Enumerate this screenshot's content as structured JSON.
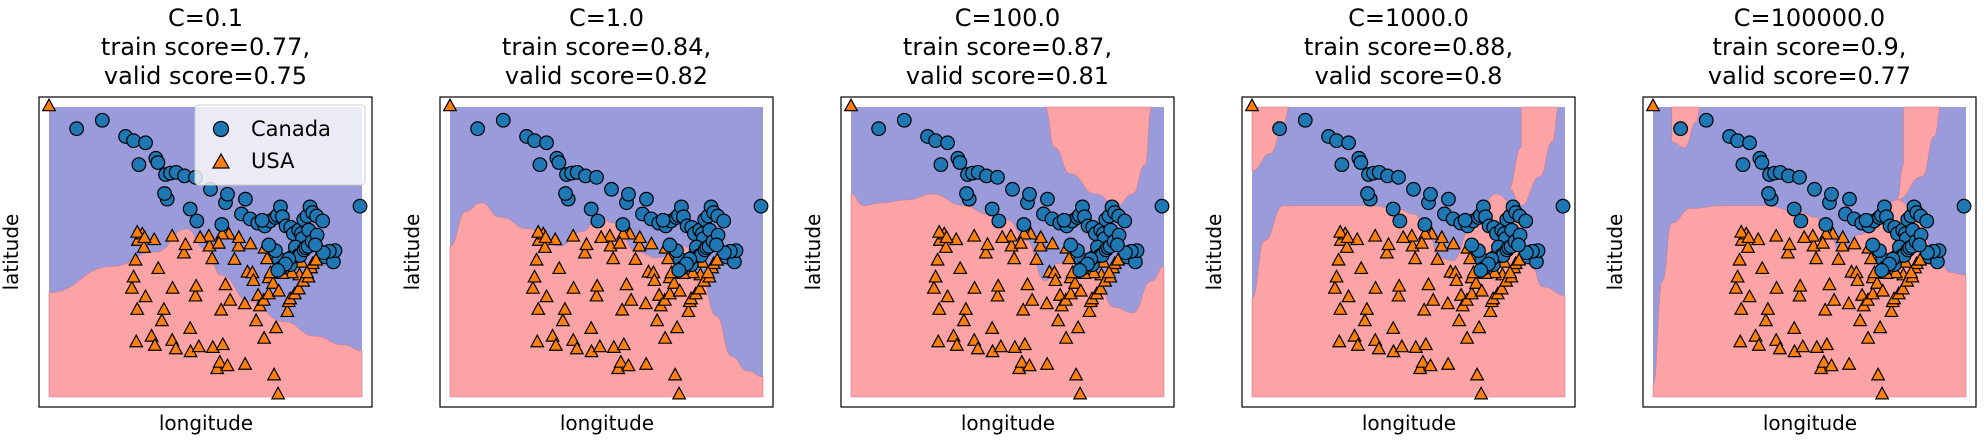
{
  "figure": {
    "title": ""
  },
  "chart_data": {
    "type": "scatter",
    "description_colors": {
      "canada_region": "#9a9bdb",
      "usa_region": "#fba3a5",
      "canada_marker": "#1f77b4",
      "usa_marker": "#ff7f0e"
    },
    "legend": {
      "location": "upper-right",
      "entries": [
        "Canada",
        "USA"
      ]
    },
    "panels": [
      {
        "title_lines": [
          "C=0.1",
          "train score=0.77,",
          "valid score=0.75"
        ],
        "xlabel": "longitude",
        "ylabel": "latitude",
        "boundary": [
          [
            0.0,
            0.64
          ],
          [
            0.2,
            0.55
          ],
          [
            0.34,
            0.5
          ],
          [
            0.44,
            0.42
          ],
          [
            0.5,
            0.49
          ],
          [
            0.55,
            0.58
          ],
          [
            0.64,
            0.67
          ],
          [
            0.75,
            0.74
          ],
          [
            0.85,
            0.79
          ],
          [
            0.94,
            0.82
          ],
          [
            1.0,
            0.84
          ]
        ]
      },
      {
        "title_lines": [
          "C=1.0",
          "train score=0.84,",
          "valid score=0.82"
        ],
        "xlabel": "longitude",
        "ylabel": "latitude",
        "boundary": [
          [
            0.0,
            0.48
          ],
          [
            0.05,
            0.36
          ],
          [
            0.1,
            0.33
          ],
          [
            0.16,
            0.38
          ],
          [
            0.25,
            0.42
          ],
          [
            0.35,
            0.48
          ],
          [
            0.42,
            0.43
          ],
          [
            0.48,
            0.38
          ],
          [
            0.52,
            0.4
          ],
          [
            0.6,
            0.5
          ],
          [
            0.66,
            0.52
          ],
          [
            0.75,
            0.48
          ],
          [
            0.8,
            0.58
          ],
          [
            0.85,
            0.72
          ],
          [
            0.9,
            0.86
          ],
          [
            0.95,
            0.91
          ],
          [
            1.0,
            0.93
          ]
        ]
      },
      {
        "title_lines": [
          "C=100.0",
          "train score=0.87,",
          "valid score=0.81"
        ],
        "xlabel": "longitude",
        "ylabel": "latitude",
        "boundary": [
          [
            0.0,
            0.3
          ],
          [
            0.04,
            0.34
          ],
          [
            0.1,
            0.33
          ],
          [
            0.18,
            0.32
          ],
          [
            0.26,
            0.3
          ],
          [
            0.36,
            0.34
          ],
          [
            0.44,
            0.37
          ],
          [
            0.5,
            0.39
          ],
          [
            0.56,
            0.46
          ],
          [
            0.62,
            0.6
          ],
          [
            0.66,
            0.54
          ],
          [
            0.72,
            0.5
          ],
          [
            0.78,
            0.58
          ],
          [
            0.84,
            0.69
          ],
          [
            0.9,
            0.71
          ],
          [
            0.96,
            0.6
          ],
          [
            1.0,
            0.55
          ]
        ],
        "extra_regions": [
          [
            [
              0.62,
              0.0
            ],
            [
              0.65,
              0.14
            ],
            [
              0.7,
              0.23
            ],
            [
              0.78,
              0.3
            ],
            [
              0.85,
              0.34
            ],
            [
              0.9,
              0.3
            ],
            [
              0.94,
              0.2
            ],
            [
              0.96,
              0.0
            ]
          ]
        ]
      },
      {
        "title_lines": [
          "C=1000.0",
          "train score=0.88,",
          "valid score=0.8"
        ],
        "xlabel": "longitude",
        "ylabel": "latitude",
        "boundary": [
          [
            0.0,
            0.66
          ],
          [
            0.04,
            0.46
          ],
          [
            0.1,
            0.34
          ],
          [
            0.18,
            0.34
          ],
          [
            0.28,
            0.34
          ],
          [
            0.38,
            0.34
          ],
          [
            0.46,
            0.35
          ],
          [
            0.52,
            0.37
          ],
          [
            0.56,
            0.43
          ],
          [
            0.6,
            0.52
          ],
          [
            0.64,
            0.53
          ],
          [
            0.7,
            0.42
          ],
          [
            0.78,
            0.3
          ],
          [
            0.84,
            0.34
          ],
          [
            0.88,
            0.5
          ],
          [
            0.93,
            0.62
          ],
          [
            1.0,
            0.65
          ]
        ],
        "extra_regions": [
          [
            [
              0.0,
              0.0
            ],
            [
              0.0,
              0.22
            ],
            [
              0.06,
              0.16
            ],
            [
              0.1,
              0.06
            ],
            [
              0.12,
              0.0
            ]
          ],
          [
            [
              0.86,
              0.0
            ],
            [
              0.86,
              0.14
            ],
            [
              0.82,
              0.28
            ],
            [
              0.86,
              0.34
            ],
            [
              0.92,
              0.24
            ],
            [
              0.96,
              0.12
            ],
            [
              0.98,
              0.0
            ]
          ]
        ]
      },
      {
        "title_lines": [
          "C=100000.0",
          "train score=0.9,",
          "valid score=0.77"
        ],
        "xlabel": "longitude",
        "ylabel": "latitude",
        "boundary": [
          [
            0.0,
            0.96
          ],
          [
            0.03,
            0.6
          ],
          [
            0.06,
            0.4
          ],
          [
            0.12,
            0.35
          ],
          [
            0.22,
            0.34
          ],
          [
            0.36,
            0.34
          ],
          [
            0.46,
            0.36
          ],
          [
            0.52,
            0.38
          ],
          [
            0.56,
            0.44
          ],
          [
            0.6,
            0.5
          ],
          [
            0.66,
            0.44
          ],
          [
            0.72,
            0.38
          ],
          [
            0.78,
            0.32
          ],
          [
            0.84,
            0.36
          ],
          [
            0.9,
            0.5
          ],
          [
            0.95,
            0.57
          ],
          [
            1.0,
            0.58
          ]
        ],
        "extra_regions": [
          [
            [
              0.06,
              0.0
            ],
            [
              0.06,
              0.12
            ],
            [
              0.1,
              0.14
            ],
            [
              0.14,
              0.05
            ],
            [
              0.15,
              0.0
            ]
          ],
          [
            [
              0.8,
              0.0
            ],
            [
              0.8,
              0.2
            ],
            [
              0.78,
              0.32
            ],
            [
              0.86,
              0.24
            ],
            [
              0.9,
              0.1
            ],
            [
              0.92,
              0.0
            ]
          ]
        ]
      }
    ],
    "series": [
      {
        "name": "Canada",
        "marker": "circle",
        "points": [
          [
            -140.7,
            63.5
          ],
          [
            -133.0,
            64.7
          ],
          [
            -126.0,
            62.4
          ],
          [
            -123.6,
            61.8
          ],
          [
            -122.0,
            58.4
          ],
          [
            -120.0,
            61.5
          ],
          [
            -116.9,
            59.3
          ],
          [
            -116.3,
            58.7
          ],
          [
            -114.0,
            57.0
          ],
          [
            -112.5,
            57.2
          ],
          [
            -110.8,
            57.3
          ],
          [
            -108.3,
            56.8
          ],
          [
            -105.0,
            56.6
          ],
          [
            -100.5,
            54.9
          ],
          [
            -96.0,
            53.0
          ],
          [
            -91.2,
            51.4
          ],
          [
            -88.6,
            50.7
          ],
          [
            -86.3,
            50.1
          ],
          [
            -84.2,
            49.7
          ],
          [
            -82.6,
            50.4
          ],
          [
            -81.0,
            50.9
          ],
          [
            -80.4,
            51.2
          ],
          [
            -79.5,
            52.4
          ],
          [
            -78.9,
            51.0
          ],
          [
            -77.8,
            49.7
          ],
          [
            -76.4,
            49.5
          ],
          [
            -75.6,
            48.6
          ],
          [
            -74.0,
            49.1
          ],
          [
            -73.2,
            48.6
          ],
          [
            -72.9,
            47.9
          ],
          [
            -72.5,
            50.6
          ],
          [
            -71.5,
            51.1
          ],
          [
            -71.0,
            49.1
          ],
          [
            -70.6,
            52.4
          ],
          [
            -69.8,
            51.6
          ],
          [
            -68.6,
            51.1
          ],
          [
            -66.8,
            50.4
          ],
          [
            -55.6,
            52.5
          ],
          [
            -113.5,
            53.5
          ],
          [
            -114.3,
            54.3
          ],
          [
            -106.6,
            52.1
          ],
          [
            -104.6,
            50.4
          ],
          [
            -97.1,
            49.9
          ],
          [
            -95.4,
            54.2
          ],
          [
            -90.0,
            53.5
          ],
          [
            -85.0,
            50.5
          ],
          [
            -80.0,
            45.0
          ],
          [
            -79.4,
            43.7
          ],
          [
            -81.0,
            46.2
          ],
          [
            -83.0,
            47.0
          ],
          [
            -76.5,
            44.2
          ],
          [
            -75.7,
            45.4
          ],
          [
            -75.0,
            46.7
          ],
          [
            -74.1,
            45.5
          ],
          [
            -73.6,
            45.5
          ],
          [
            -72.4,
            46.3
          ],
          [
            -71.9,
            46.6
          ],
          [
            -71.2,
            46.8
          ],
          [
            -70.0,
            47.5
          ],
          [
            -68.5,
            48.4
          ],
          [
            -66.0,
            45.3
          ],
          [
            -65.0,
            46.0
          ],
          [
            -63.6,
            44.6
          ],
          [
            -63.1,
            46.2
          ],
          [
            -64.8,
            46.1
          ],
          [
            -66.6,
            45.9
          ],
          [
            -69.0,
            47.0
          ],
          [
            -77.0,
            45.0
          ],
          [
            -78.0,
            44.3
          ],
          [
            -80.3,
            43.4
          ]
        ]
      },
      {
        "name": "USA",
        "marker": "triangle",
        "points": [
          [
            -149.0,
            66.7
          ],
          [
            -123.0,
            44.8
          ],
          [
            -124.1,
            40.8
          ],
          [
            -122.5,
            37.8
          ],
          [
            -122.8,
            33.2
          ],
          [
            -123.6,
            42.4
          ],
          [
            -122.3,
            47.6
          ],
          [
            -120.5,
            46.6
          ],
          [
            -120.0,
            39.6
          ],
          [
            -118.2,
            34.0
          ],
          [
            -117.2,
            32.7
          ],
          [
            -117.4,
            47.7
          ],
          [
            -116.2,
            43.6
          ],
          [
            -114.5,
            37.8
          ],
          [
            -115.1,
            36.2
          ],
          [
            -112.0,
            33.4
          ],
          [
            -111.9,
            40.8
          ],
          [
            -110.9,
            32.2
          ],
          [
            -108.5,
            45.8
          ],
          [
            -106.6,
            35.1
          ],
          [
            -105.0,
            39.7
          ],
          [
            -104.8,
            41.1
          ],
          [
            -106.5,
            31.8
          ],
          [
            -100.8,
            46.8
          ],
          [
            -99.8,
            32.4
          ],
          [
            -98.5,
            29.4
          ],
          [
            -97.7,
            30.3
          ],
          [
            -96.8,
            32.8
          ],
          [
            -95.4,
            29.8
          ],
          [
            -97.3,
            37.7
          ],
          [
            -96.0,
            41.3
          ],
          [
            -94.6,
            39.1
          ],
          [
            -93.3,
            44.9
          ],
          [
            -92.1,
            46.8
          ],
          [
            -90.2,
            38.6
          ],
          [
            -90.1,
            30.0
          ],
          [
            -89.4,
            43.1
          ],
          [
            -87.9,
            43.0
          ],
          [
            -87.6,
            41.9
          ],
          [
            -86.8,
            36.2
          ],
          [
            -86.2,
            39.8
          ],
          [
            -85.7,
            38.3
          ],
          [
            -84.4,
            33.7
          ],
          [
            -84.5,
            39.1
          ],
          [
            -83.0,
            40.0
          ],
          [
            -83.0,
            42.3
          ],
          [
            -81.7,
            41.5
          ],
          [
            -81.4,
            28.5
          ],
          [
            -80.2,
            25.8
          ],
          [
            -80.8,
            35.2
          ],
          [
            -80.0,
            40.4
          ],
          [
            -77.4,
            37.5
          ],
          [
            -77.0,
            38.9
          ],
          [
            -76.6,
            39.3
          ],
          [
            -75.2,
            40.0
          ],
          [
            -74.0,
            40.7
          ],
          [
            -73.8,
            42.7
          ],
          [
            -72.7,
            41.8
          ],
          [
            -71.1,
            42.4
          ],
          [
            -70.3,
            43.7
          ],
          [
            -69.8,
            44.3
          ],
          [
            -68.8,
            44.8
          ],
          [
            -68.0,
            46.9
          ],
          [
            -71.5,
            43.0
          ],
          [
            -73.2,
            44.5
          ],
          [
            -76.1,
            43.0
          ],
          [
            -78.9,
            42.9
          ],
          [
            -79.9,
            44.2
          ],
          [
            -82.5,
            43.0
          ],
          [
            -83.5,
            45.0
          ],
          [
            -84.3,
            46.5
          ],
          [
            -88.5,
            47.1
          ],
          [
            -92.0,
            48.0
          ],
          [
            -95.0,
            48.5
          ],
          [
            -97.0,
            48.5
          ],
          [
            -98.0,
            47.2
          ],
          [
            -101.0,
            48.2
          ],
          [
            -103.6,
            48.0
          ],
          [
            -108.0,
            47.0
          ],
          [
            -112.0,
            48.2
          ],
          [
            -121.0,
            48.5
          ],
          [
            -122.5,
            48.75
          ],
          [
            -104.0,
            32.5
          ],
          [
            -100.0,
            45.0
          ],
          [
            -120.3,
            48.0
          ]
        ]
      }
    ],
    "xlim": [
      -152,
      -52
    ],
    "ylim": [
      24,
      68
    ]
  }
}
